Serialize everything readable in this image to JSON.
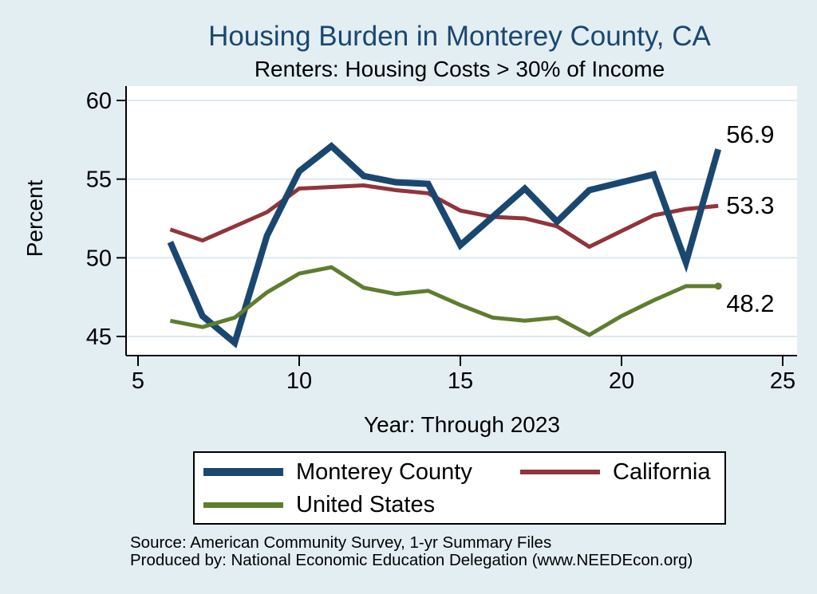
{
  "colors": {
    "background": "#e3eef3",
    "plot_background": "#ffffff",
    "grid": "#d9e6ec",
    "axis": "#000000",
    "title": "#1a476f"
  },
  "chart_data": {
    "type": "line",
    "title": "Housing Burden in Monterey County, CA",
    "subtitle": "Renters: Housing Costs > 30% of Income",
    "xlabel": "Year: Through 2023",
    "ylabel": "Percent",
    "xlim": [
      4.6,
      25.5
    ],
    "ylim": [
      43.8,
      60.9
    ],
    "x_ticks": [
      5,
      10,
      15,
      20,
      25
    ],
    "y_ticks": [
      45,
      50,
      55,
      60
    ],
    "grid": true,
    "legend_position": "bottom",
    "x": [
      6,
      7,
      8,
      9,
      10,
      11,
      12,
      13,
      14,
      15,
      16,
      17,
      18,
      19,
      20,
      21,
      22,
      23
    ],
    "series": [
      {
        "name": "Monterey County",
        "color": "#1a476f",
        "width": 8,
        "z": 2,
        "end_marker": false,
        "values": [
          51.0,
          46.3,
          44.6,
          51.4,
          55.5,
          57.1,
          55.2,
          54.8,
          54.7,
          50.8,
          52.6,
          54.4,
          52.3,
          54.3,
          54.8,
          55.3,
          49.7,
          56.9
        ]
      },
      {
        "name": "California",
        "color": "#90353b",
        "width": 5,
        "z": 1,
        "end_marker": false,
        "values": [
          51.8,
          51.1,
          52.0,
          52.9,
          54.4,
          54.5,
          54.6,
          54.3,
          54.1,
          53.0,
          52.6,
          52.5,
          52.0,
          50.7,
          51.7,
          52.7,
          53.1,
          53.3
        ]
      },
      {
        "name": "United States",
        "color": "#5e7d2f",
        "width": 5,
        "z": 3,
        "end_marker": true,
        "values": [
          46.0,
          45.6,
          46.2,
          47.8,
          49.0,
          49.4,
          48.1,
          47.7,
          47.9,
          47.0,
          46.2,
          46.0,
          46.2,
          45.1,
          46.3,
          47.3,
          48.2,
          48.2
        ]
      }
    ],
    "end_labels": [
      {
        "text": "56.9",
        "value": 56.9,
        "dy": -18,
        "series": "Monterey County"
      },
      {
        "text": "53.3",
        "value": 53.3,
        "dy": 0,
        "series": "California"
      },
      {
        "text": "48.2",
        "value": 48.2,
        "dy": 22,
        "series": "United States"
      }
    ]
  },
  "legend": {
    "items": [
      {
        "label": "Monterey County",
        "color": "#1a476f"
      },
      {
        "label": "California",
        "color": "#90353b"
      },
      {
        "label": "United States",
        "color": "#5e7d2f"
      }
    ]
  },
  "footer": {
    "line1": "Source: American Community Survey, 1-yr Summary Files",
    "line2": "Produced by: National Economic Education Delegation (www.NEEDEcon.org)"
  }
}
